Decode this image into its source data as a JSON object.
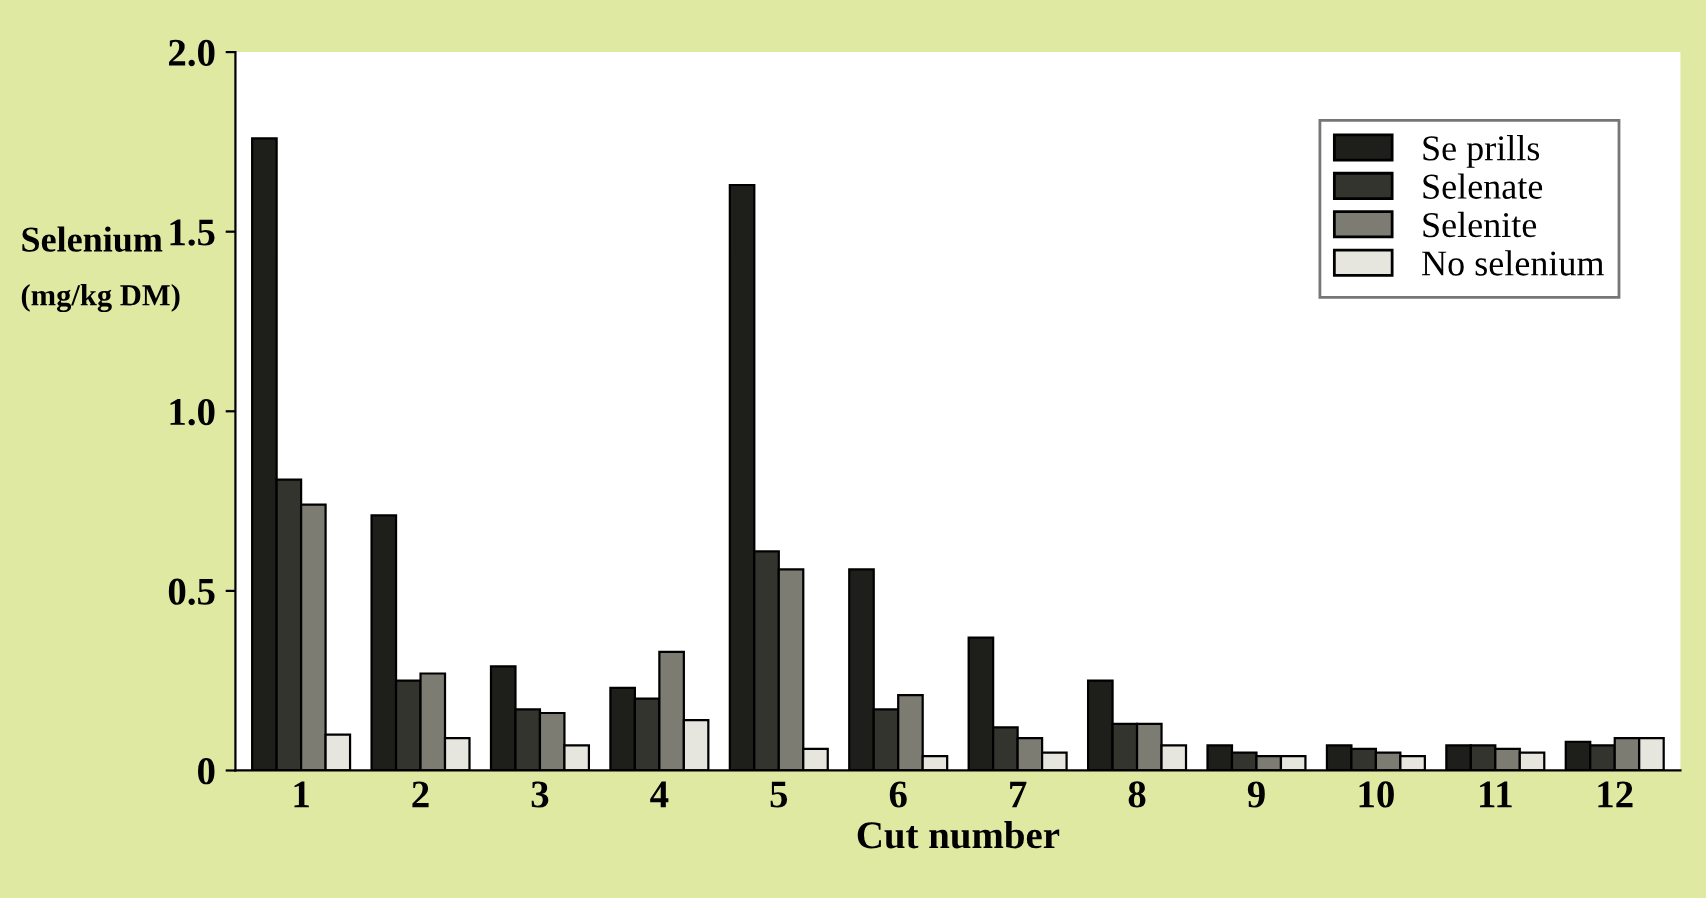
{
  "chart_data": {
    "type": "bar",
    "xlabel": "Cut number",
    "ylabel": "Selenium\n(mg/kg DM)",
    "categories": [
      "1",
      "2",
      "3",
      "4",
      "5",
      "6",
      "7",
      "8",
      "9",
      "10",
      "11",
      "12"
    ],
    "series": [
      {
        "name": "Se prills",
        "color": "#1e1e1a",
        "values": [
          1.76,
          0.71,
          0.29,
          0.23,
          1.63,
          0.56,
          0.37,
          0.25,
          0.07,
          0.07,
          0.07,
          0.08
        ]
      },
      {
        "name": "Selenate",
        "color": "#34342e",
        "values": [
          0.81,
          0.25,
          0.17,
          0.2,
          0.61,
          0.17,
          0.12,
          0.13,
          0.05,
          0.06,
          0.07,
          0.07
        ]
      },
      {
        "name": "Selenite",
        "color": "#7c7c72",
        "values": [
          0.74,
          0.27,
          0.16,
          0.33,
          0.56,
          0.21,
          0.09,
          0.13,
          0.04,
          0.05,
          0.06,
          0.09
        ]
      },
      {
        "name": "No selenium",
        "color": "#e6e6de",
        "values": [
          0.1,
          0.09,
          0.07,
          0.14,
          0.06,
          0.04,
          0.05,
          0.07,
          0.04,
          0.04,
          0.05,
          0.09
        ]
      }
    ],
    "ylim": [
      0,
      2.0
    ],
    "yticks": [
      0,
      0.5,
      {
        "value": 1,
        "label": "1.0"
      },
      1.5,
      {
        "value": 2,
        "label": "2.0"
      }
    ],
    "grid": false,
    "legend": "top right"
  }
}
